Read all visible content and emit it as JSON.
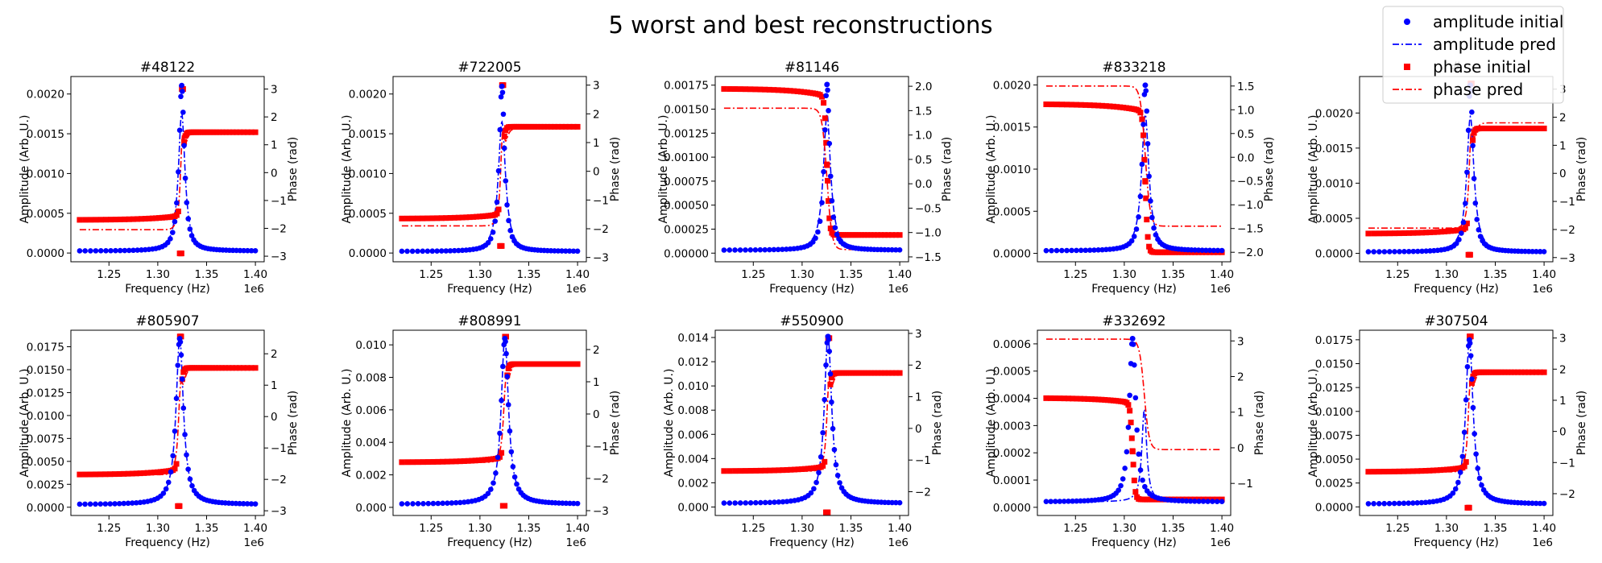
{
  "figure": {
    "suptitle": "5 worst and best reconstructions",
    "legend": {
      "placement": "upper-right",
      "entries": [
        {
          "label": "amplitude initial",
          "color": "#0000ff",
          "style": "dots"
        },
        {
          "label": "amplitude pred",
          "color": "#0000ff",
          "style": "dash-dot"
        },
        {
          "label": "phase initial",
          "color": "#ff0000",
          "style": "squares"
        },
        {
          "label": "phase pred",
          "color": "#ff0000",
          "style": "dash-dot"
        }
      ]
    },
    "x_offset_label": "1e6"
  },
  "chart_data": [
    {
      "type": "line",
      "title": "#48122",
      "xlabel": "Frequency (Hz)",
      "ylabel": "Amplitude (Arb. U.)",
      "y2label": "Phase (rad)",
      "xlim": [
        1.211,
        1.409
      ],
      "xticks": [
        "1.25",
        "1.30",
        "1.35",
        "1.40"
      ],
      "ylim": [
        -0.00011,
        0.00222
      ],
      "yticks": [
        "0.0000",
        "0.0005",
        "0.0010",
        "0.0015",
        "0.0020"
      ],
      "y2lim": [
        -3.2,
        3.45
      ],
      "y2ticks": [
        "-3",
        "-2",
        "-1",
        "0",
        "1",
        "2",
        "3"
      ],
      "params": {
        "f0": 1.3245,
        "amp_peak_initial": 0.00211,
        "amp_peak_pred": 0.00176,
        "amp_base": 2.5e-05,
        "width_initial": 0.0033,
        "width_pred": 0.0041,
        "phase_initial_left": -1.7,
        "phase_initial_right": 1.45,
        "phase_pred_left": -2.05,
        "phase_pred_right": 1.5,
        "phase_spike": 3.0,
        "phase_dip": -2.9
      }
    },
    {
      "type": "line",
      "title": "#722005",
      "xlabel": "Frequency (Hz)",
      "ylabel": "Amplitude (Arb. U.)",
      "y2label": "Phase (rad)",
      "xlim": [
        1.211,
        1.409
      ],
      "xticks": [
        "1.25",
        "1.30",
        "1.35",
        "1.40"
      ],
      "ylim": [
        -0.00011,
        0.00222
      ],
      "yticks": [
        "0.0000",
        "0.0005",
        "0.0010",
        "0.0015",
        "0.0020"
      ],
      "y2lim": [
        -3.15,
        3.3
      ],
      "y2ticks": [
        "-3",
        "-2",
        "-1",
        "0",
        "1",
        "2",
        "3"
      ],
      "params": {
        "f0": 1.3225,
        "amp_peak_initial": 0.0021,
        "amp_peak_pred": 0.00165,
        "amp_base": 2e-05,
        "width_initial": 0.0033,
        "width_pred": 0.0045,
        "phase_initial_left": -1.65,
        "phase_initial_right": 1.55,
        "phase_pred_left": -1.9,
        "phase_pred_right": 1.5,
        "phase_spike": 3.0,
        "phase_dip": -2.6
      }
    },
    {
      "type": "line",
      "title": "#81146",
      "xlabel": "Frequency (Hz)",
      "ylabel": "Amplitude (Arb. U.)",
      "y2label": "Phase (rad)",
      "xlim": [
        1.211,
        1.409
      ],
      "xticks": [
        "1.25",
        "1.30",
        "1.35",
        "1.40"
      ],
      "ylim": [
        -9e-05,
        0.00184
      ],
      "yticks": [
        "0.00000",
        "0.00025",
        "0.00050",
        "0.00075",
        "0.00100",
        "0.00125",
        "0.00150",
        "0.00175"
      ],
      "y2lim": [
        -1.6,
        2.2
      ],
      "y2ticks": [
        "-1.5",
        "-1.0",
        "-0.5",
        "0.0",
        "0.5",
        "1.0",
        "1.5",
        "2.0"
      ],
      "params": {
        "f0": 1.3255,
        "amp_peak_initial": 0.00176,
        "amp_peak_pred": 0.00145,
        "amp_base": 3e-05,
        "width_initial": 0.0033,
        "width_pred": 0.0045,
        "phase_initial_left": 1.95,
        "phase_initial_right": -1.05,
        "phase_pred_left": 1.55,
        "phase_pred_right": -1.35,
        "phase_spike": null,
        "phase_dip": null
      }
    },
    {
      "type": "line",
      "title": "#833218",
      "xlabel": "Frequency (Hz)",
      "ylabel": "Amplitude (Arb. U.)",
      "y2label": "Phase (rad)",
      "xlim": [
        1.211,
        1.409
      ],
      "xticks": [
        "1.25",
        "1.30",
        "1.35",
        "1.40"
      ],
      "ylim": [
        -0.0001,
        0.0021
      ],
      "yticks": [
        "0.0000",
        "0.0005",
        "0.0010",
        "0.0015",
        "0.0020"
      ],
      "y2lim": [
        -2.2,
        1.7
      ],
      "y2ticks": [
        "-2.0",
        "-1.5",
        "-1.0",
        "-0.5",
        "0.0",
        "0.5",
        "1.0",
        "1.5"
      ],
      "params": {
        "f0": 1.3215,
        "amp_peak_initial": 0.002,
        "amp_peak_pred": 0.00165,
        "amp_base": 3e-05,
        "width_initial": 0.0035,
        "width_pred": 0.0045,
        "phase_initial_left": 1.12,
        "phase_initial_right": -2.0,
        "phase_pred_left": 1.5,
        "phase_pred_right": -1.45,
        "phase_spike": null,
        "phase_dip": null
      }
    },
    {
      "type": "line",
      "title": "#",
      "xlabel": "Frequency (Hz)",
      "ylabel": "Amplitude (Arb. U.)",
      "y2label": "Phase (rad)",
      "xlim": [
        1.211,
        1.409
      ],
      "xticks": [
        "1.25",
        "1.30",
        "1.35",
        "1.40"
      ],
      "ylim": [
        -0.00012,
        0.00252
      ],
      "yticks": [
        "0.0000",
        "0.0005",
        "0.0010",
        "0.0015",
        "0.0020"
      ],
      "y2lim": [
        -3.15,
        3.45
      ],
      "y2ticks": [
        "-3",
        "-2",
        "-1",
        "0",
        "1",
        "2",
        "3"
      ],
      "params": {
        "f0": 1.3245,
        "amp_peak_initial": 0.0024,
        "amp_peak_pred": 0.00195,
        "amp_base": 2e-05,
        "width_initial": 0.0033,
        "width_pred": 0.0045,
        "phase_initial_left": -2.15,
        "phase_initial_right": 1.6,
        "phase_pred_left": -1.95,
        "phase_pred_right": 1.8,
        "phase_spike": 3.2,
        "phase_dip": -2.9
      }
    },
    {
      "type": "line",
      "title": "#805907",
      "xlabel": "Frequency (Hz)",
      "ylabel": "Amplitude (Arb. U.)",
      "y2label": "Phase (rad)",
      "xlim": [
        1.211,
        1.409
      ],
      "xticks": [
        "1.25",
        "1.30",
        "1.35",
        "1.40"
      ],
      "ylim": [
        -0.0009,
        0.0193
      ],
      "yticks": [
        "0.0000",
        "0.0025",
        "0.0050",
        "0.0075",
        "0.0100",
        "0.0125",
        "0.0150",
        "0.0175"
      ],
      "y2lim": [
        -3.15,
        2.75
      ],
      "y2ticks": [
        "-3",
        "-2",
        "-1",
        "0",
        "1",
        "2"
      ],
      "params": {
        "f0": 1.3225,
        "amp_peak_initial": 0.0184,
        "amp_peak_pred": 0.0185,
        "amp_base": 0.0003,
        "width_initial": 0.0045,
        "width_pred": 0.0045,
        "phase_initial_left": -1.85,
        "phase_initial_right": 1.55,
        "phase_pred_left": -1.85,
        "phase_pred_right": 1.55,
        "phase_spike": 2.55,
        "phase_dip": -2.85
      }
    },
    {
      "type": "line",
      "title": "#808991",
      "xlabel": "Frequency (Hz)",
      "ylabel": "Amplitude (Arb. U.)",
      "y2label": "Phase (rad)",
      "xlim": [
        1.211,
        1.409
      ],
      "xticks": [
        "1.25",
        "1.30",
        "1.35",
        "1.40"
      ],
      "ylim": [
        -0.0005,
        0.0109
      ],
      "yticks": [
        "0.000",
        "0.002",
        "0.004",
        "0.006",
        "0.008",
        "0.010"
      ],
      "y2lim": [
        -3.15,
        2.6
      ],
      "y2ticks": [
        "-3",
        "-2",
        "-1",
        "0",
        "1",
        "2"
      ],
      "params": {
        "f0": 1.3255,
        "amp_peak_initial": 0.0104,
        "amp_peak_pred": 0.0105,
        "amp_base": 0.0002,
        "width_initial": 0.0045,
        "width_pred": 0.0045,
        "phase_initial_left": -1.5,
        "phase_initial_right": 1.55,
        "phase_pred_left": -1.5,
        "phase_pred_right": 1.55,
        "phase_spike": 2.4,
        "phase_dip": -2.85
      }
    },
    {
      "type": "line",
      "title": "#550900",
      "xlabel": "Frequency (Hz)",
      "ylabel": "Amplitude (Arb. U.)",
      "y2label": "Phase (rad)",
      "xlim": [
        1.211,
        1.409
      ],
      "xticks": [
        "1.25",
        "1.30",
        "1.35",
        "1.40"
      ],
      "ylim": [
        -0.0007,
        0.0146
      ],
      "yticks": [
        "0.000",
        "0.002",
        "0.004",
        "0.006",
        "0.008",
        "0.010",
        "0.012",
        "0.014"
      ],
      "y2lim": [
        -2.75,
        3.1
      ],
      "y2ticks": [
        "-2",
        "-1",
        "0",
        "1",
        "2",
        "3"
      ],
      "params": {
        "f0": 1.3265,
        "amp_peak_initial": 0.0141,
        "amp_peak_pred": 0.0142,
        "amp_base": 0.0003,
        "width_initial": 0.0045,
        "width_pred": 0.0045,
        "phase_initial_left": -1.35,
        "phase_initial_right": 1.75,
        "phase_pred_left": -1.35,
        "phase_pred_right": 1.75,
        "phase_spike": 2.85,
        "phase_dip": -2.65
      }
    },
    {
      "type": "line",
      "title": "#332692",
      "xlabel": "Frequency (Hz)",
      "ylabel": "Amplitude (Arb. U.)",
      "y2label": "Phase (rad)",
      "xlim": [
        1.211,
        1.409
      ],
      "xticks": [
        "1.25",
        "1.30",
        "1.35",
        "1.40"
      ],
      "ylim": [
        -3e-05,
        0.00065
      ],
      "yticks": [
        "0.0000",
        "0.0001",
        "0.0002",
        "0.0003",
        "0.0004",
        "0.0005",
        "0.0006"
      ],
      "y2lim": [
        -1.9,
        3.3
      ],
      "y2ticks": [
        "-1",
        "0",
        "1",
        "2",
        "3"
      ],
      "params": {
        "f0": 1.3085,
        "f0_pred": 1.3205,
        "amp_peak_initial": 0.00062,
        "amp_peak_pred": 0.00036,
        "amp_base": 2e-05,
        "width_initial": 0.004,
        "width_pred": 0.003,
        "phase_initial_left": 1.4,
        "phase_initial_right": -1.45,
        "phase_pred_left": 3.05,
        "phase_pred_right": -0.05,
        "phase_spike": null,
        "phase_dip": null
      }
    },
    {
      "type": "line",
      "title": "#307504",
      "xlabel": "Frequency (Hz)",
      "ylabel": "Amplitude (Arb. U.)",
      "y2label": "Phase (rad)",
      "xlim": [
        1.211,
        1.409
      ],
      "xticks": [
        "1.25",
        "1.30",
        "1.35",
        "1.40"
      ],
      "ylim": [
        -0.0009,
        0.0185
      ],
      "yticks": [
        "0.0000",
        "0.0025",
        "0.0050",
        "0.0075",
        "0.0100",
        "0.0125",
        "0.0150",
        "0.0175"
      ],
      "y2lim": [
        -2.7,
        3.25
      ],
      "y2ticks": [
        "-2",
        "-1",
        "0",
        "1",
        "2",
        "3"
      ],
      "params": {
        "f0": 1.3235,
        "amp_peak_initial": 0.0175,
        "amp_peak_pred": 0.0176,
        "amp_base": 0.0003,
        "width_initial": 0.0045,
        "width_pred": 0.0045,
        "phase_initial_left": -1.3,
        "phase_initial_right": 1.9,
        "phase_pred_left": -1.3,
        "phase_pred_right": 1.9,
        "phase_spike": 3.05,
        "phase_dip": -2.45
      }
    }
  ]
}
